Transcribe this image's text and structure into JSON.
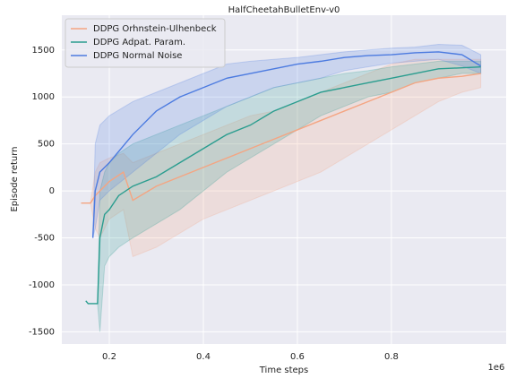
{
  "chart_data": {
    "type": "line",
    "title": "HalfCheetahBulletEnv-v0",
    "x_label": "Time steps",
    "y_label": "Episode return",
    "x_offset_label": "1e6",
    "xlim": [
      99000,
      1044000
    ],
    "ylim": [
      -1630,
      1870
    ],
    "xticks": [
      {
        "value": 200000,
        "label": "0.2"
      },
      {
        "value": 400000,
        "label": "0.4"
      },
      {
        "value": 600000,
        "label": "0.6"
      },
      {
        "value": 800000,
        "label": "0.8"
      }
    ],
    "yticks": [
      -1500,
      -1000,
      -500,
      0,
      500,
      1000,
      1500
    ],
    "grid": true,
    "legend": "upper left",
    "series": [
      {
        "name": "DDPG Orhnstein-Ulhenbeck",
        "color": "#f4a582",
        "x": [
          140000,
          160000,
          170000,
          180000,
          200000,
          230000,
          250000,
          300000,
          350000,
          400000,
          450000,
          500000,
          550000,
          600000,
          650000,
          700000,
          750000,
          800000,
          850000,
          900000,
          950000,
          990000
        ],
        "values": [
          -130,
          -130,
          -50,
          0,
          100,
          200,
          -100,
          50,
          150,
          250,
          350,
          450,
          550,
          650,
          750,
          850,
          950,
          1050,
          1150,
          1200,
          1220,
          1250
        ],
        "lower": [
          -130,
          -130,
          -400,
          -500,
          -300,
          -200,
          -700,
          -600,
          -450,
          -300,
          -200,
          -100,
          0,
          100,
          200,
          350,
          500,
          650,
          800,
          950,
          1050,
          1100
        ],
        "upper": [
          -130,
          -130,
          200,
          300,
          350,
          400,
          300,
          400,
          500,
          600,
          700,
          800,
          850,
          950,
          1050,
          1150,
          1250,
          1350,
          1400,
          1400,
          1400,
          1400
        ]
      },
      {
        "name": "DDPG Adpat. Param.",
        "color": "#2a9d8f",
        "x": [
          150000,
          155000,
          175000,
          180000,
          190000,
          200000,
          220000,
          250000,
          300000,
          350000,
          400000,
          450000,
          500000,
          550000,
          600000,
          650000,
          700000,
          750000,
          800000,
          850000,
          900000,
          950000,
          990000
        ],
        "values": [
          -1170,
          -1200,
          -1200,
          -500,
          -250,
          -200,
          -50,
          50,
          150,
          300,
          450,
          600,
          700,
          850,
          950,
          1050,
          1100,
          1150,
          1200,
          1250,
          1300,
          1310,
          1320
        ],
        "lower": [
          -1170,
          -1200,
          -1200,
          -1500,
          -800,
          -700,
          -600,
          -500,
          -350,
          -200,
          0,
          200,
          350,
          500,
          650,
          800,
          900,
          1000,
          1050,
          1150,
          1200,
          1250,
          1250
        ],
        "upper": [
          -1170,
          -1200,
          -1200,
          0,
          200,
          300,
          400,
          500,
          600,
          700,
          800,
          900,
          1000,
          1100,
          1150,
          1200,
          1250,
          1280,
          1320,
          1350,
          1380,
          1380,
          1380
        ]
      },
      {
        "name": "DDPG Normal Noise",
        "color": "#4c7be0",
        "x": [
          165000,
          170000,
          180000,
          200000,
          250000,
          300000,
          350000,
          400000,
          450000,
          500000,
          550000,
          600000,
          650000,
          700000,
          750000,
          800000,
          850000,
          900000,
          950000,
          990000
        ],
        "values": [
          -500,
          0,
          200,
          300,
          600,
          850,
          1000,
          1100,
          1200,
          1250,
          1300,
          1350,
          1380,
          1420,
          1440,
          1450,
          1470,
          1480,
          1450,
          1330
        ],
        "lower": [
          -500,
          -400,
          -100,
          0,
          200,
          400,
          600,
          750,
          900,
          1000,
          1100,
          1150,
          1200,
          1280,
          1320,
          1360,
          1380,
          1400,
          1330,
          1250
        ],
        "upper": [
          -500,
          500,
          700,
          800,
          950,
          1050,
          1150,
          1250,
          1350,
          1380,
          1400,
          1420,
          1450,
          1480,
          1500,
          1520,
          1530,
          1560,
          1550,
          1450
        ]
      }
    ]
  }
}
